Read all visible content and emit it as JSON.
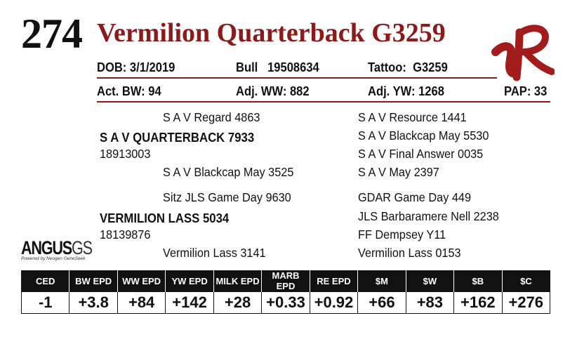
{
  "lot_number": "274",
  "animal_name": "Vermilion Quarterback G3259",
  "info_row1": {
    "dob": "DOB: 3/1/2019",
    "bull": "Bull   19508634",
    "tattoo": "Tattoo:  G3259"
  },
  "info_row2": {
    "act_bw": "Act. BW: 94",
    "adj_ww": "Adj. WW: 882",
    "adj_yw": "Adj. YW: 1268",
    "pap": "PAP: 33"
  },
  "pedigree": {
    "sire_sire": "S A V Regard 4863",
    "sire": "S A V QUARTERBACK 7933",
    "sire_reg": "18913003",
    "sire_dam": "S A V Blackcap May 3525",
    "dam_sire": "Sitz JLS Game Day 9630",
    "dam": "VERMILION LASS 5034",
    "dam_reg": "18139876",
    "dam_dam": "Vermilion Lass 3141",
    "right_col": [
      "S A V Resource 1441",
      "S A V Blackcap May 5530",
      "S A V Final Answer 0035",
      "S A V May 2397",
      "GDAR Game Day 449",
      "JLS Barbaramere Nell 2238",
      "FF Dempsey Y11",
      "Vermilion Lass 0153"
    ]
  },
  "angus_logo": {
    "word": "ANGUS",
    "suffix": "GS",
    "tagline": "Powered by Neogen GeneSeek"
  },
  "epd_table": {
    "headers": [
      "CED",
      "BW EPD",
      "WW EPD",
      "YW EPD",
      "MILK EPD",
      "MARB EPD",
      "RE EPD",
      "$M",
      "$W",
      "$B",
      "$C"
    ],
    "values": [
      "-1",
      "+3.8",
      "+84",
      "+142",
      "+28",
      "+0.33",
      "+0.92",
      "+66",
      "+83",
      "+162",
      "+276"
    ]
  },
  "colors": {
    "accent": "#8b1a1a",
    "text": "#111111"
  },
  "icons": {
    "brand": "vr-brand-logo"
  }
}
